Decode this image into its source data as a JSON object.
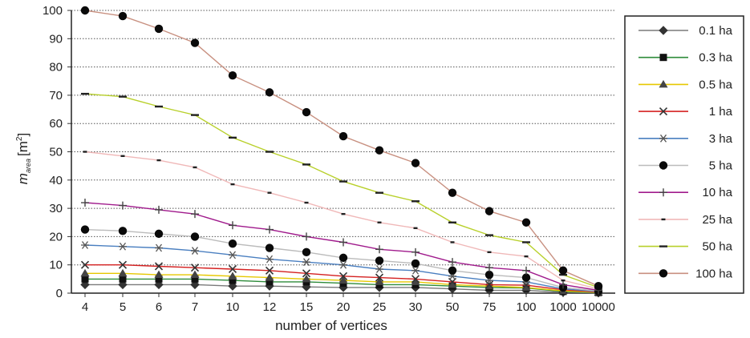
{
  "chart_data": {
    "type": "line",
    "xlabel": "number of vertices",
    "ylabel_main": "m",
    "ylabel_sub": "area",
    "ylabel_unit": "[m",
    "ylabel_sup": "2",
    "ylabel_close": "]",
    "ylim": [
      0,
      100
    ],
    "yticks": [
      "0",
      "10",
      "20",
      "30",
      "40",
      "50",
      "60",
      "70",
      "80",
      "90",
      "100"
    ],
    "categories": [
      "4",
      "5",
      "6",
      "7",
      "10",
      "12",
      "15",
      "20",
      "25",
      "30",
      "50",
      "75",
      "100",
      "1000",
      "10000"
    ],
    "grid": "horizontal dotted",
    "legend_position": "right",
    "series": [
      {
        "name": "0.1 ha",
        "color": "#7a7a7a",
        "marker": "diamond",
        "values": [
          3,
          3,
          3,
          3,
          2.5,
          2.5,
          2.2,
          2,
          2,
          2,
          1.5,
          1,
          1,
          0.3,
          0.1
        ]
      },
      {
        "name": "0.3 ha",
        "color": "#2e8b3a",
        "marker": "square",
        "values": [
          5,
          5,
          5,
          5,
          4.5,
          4,
          4,
          3.5,
          3,
          3,
          2.5,
          2,
          1.8,
          0.6,
          0.2
        ]
      },
      {
        "name": "0.5 ha",
        "color": "#e6c800",
        "marker": "triangle",
        "values": [
          7,
          7,
          6.5,
          6.5,
          6,
          5.5,
          5,
          4.5,
          4,
          4,
          3,
          2.5,
          2,
          0.8,
          0.3
        ]
      },
      {
        "name": "1 ha",
        "color": "#d42020",
        "marker": "x",
        "values": [
          10,
          10,
          9.5,
          9,
          8.5,
          8,
          7,
          6,
          5.5,
          5,
          4,
          3,
          2.8,
          1.2,
          0.4
        ]
      },
      {
        "name": "3 ha",
        "color": "#4a7fc0",
        "marker": "asterisk",
        "values": [
          17,
          16.5,
          16,
          15,
          13.5,
          12,
          11,
          10,
          8.5,
          8,
          6,
          4.5,
          4,
          1.5,
          0.6
        ]
      },
      {
        "name": "5 ha",
        "color": "#bbbbbb",
        "marker": "circle",
        "values": [
          22.5,
          22,
          21,
          20,
          17.5,
          16,
          14.5,
          12.5,
          11.5,
          10.5,
          8,
          6.5,
          5.5,
          2,
          0.7
        ]
      },
      {
        "name": "10 ha",
        "color": "#a01a8c",
        "marker": "plus",
        "values": [
          32,
          31,
          29.5,
          28,
          24,
          22.5,
          20,
          18,
          15.5,
          14.5,
          11,
          9,
          8,
          3,
          1
        ]
      },
      {
        "name": "25 ha",
        "color": "#f0b8b8",
        "marker": "dash",
        "values": [
          50,
          48.5,
          47,
          44.5,
          38.5,
          35.5,
          32,
          28,
          25,
          23,
          18,
          14.5,
          13,
          4.5,
          1.5
        ]
      },
      {
        "name": "50 ha",
        "color": "#b8d02a",
        "marker": "bar",
        "values": [
          70.5,
          69.5,
          66,
          63,
          55,
          50,
          45.5,
          39.5,
          35.5,
          32.5,
          25,
          20.5,
          18,
          6.5,
          2
        ]
      },
      {
        "name": "100 ha",
        "color": "#c89080",
        "marker": "circle",
        "values": [
          100,
          98,
          93.5,
          88.5,
          77,
          71,
          64,
          55.5,
          50.5,
          46,
          35.5,
          29,
          25,
          8,
          2.5
        ]
      }
    ]
  }
}
